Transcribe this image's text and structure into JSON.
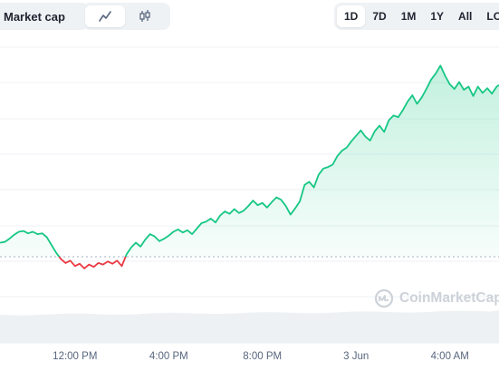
{
  "toolbar": {
    "metric_label": "Market cap",
    "chart_types": [
      "line-chart-icon",
      "candlestick-icon"
    ],
    "ranges": [
      "1D",
      "7D",
      "1M",
      "1Y",
      "All",
      "LOG"
    ],
    "active_range": "1D"
  },
  "watermark": "CoinMarketCap",
  "colors": {
    "up": "#16c784",
    "down": "#ea3943",
    "grid": "#eff2f5",
    "ref": "#a6b0c3"
  },
  "chart_data": {
    "type": "area",
    "title": "",
    "x_tick_labels": [
      "12:00 PM",
      "4:00 PM",
      "8:00 PM",
      "3 Jun",
      "4:00 AM"
    ],
    "x_tick_hours": [
      12,
      16,
      20,
      24,
      28
    ],
    "x_range_hours": [
      8.8,
      30.1
    ],
    "baseline": 0,
    "series": [
      {
        "x": [
          8.8,
          9.0,
          9.2,
          9.4,
          9.6,
          9.8,
          10.0,
          10.2,
          10.4,
          10.6,
          10.8,
          11.0,
          11.2,
          11.4,
          11.6,
          11.8,
          12.0,
          12.2,
          12.4,
          12.6,
          12.8,
          13.0,
          13.2,
          13.4,
          13.6,
          13.8,
          14.0,
          14.2,
          14.4,
          14.6,
          14.8,
          15.0,
          15.2,
          15.4,
          15.6,
          15.8,
          16.0,
          16.2,
          16.4,
          16.6,
          16.8,
          17.0,
          17.2,
          17.4,
          17.6,
          17.8,
          18.0,
          18.2,
          18.4,
          18.6,
          18.8,
          19.0,
          19.2,
          19.4,
          19.6,
          19.8,
          20.0,
          20.2,
          20.4,
          20.6,
          20.8,
          21.0,
          21.2,
          21.4,
          21.6,
          21.8,
          22.0,
          22.2,
          22.4,
          22.6,
          22.8,
          23.0,
          23.2,
          23.4,
          23.6,
          23.8,
          24.0,
          24.2,
          24.4,
          24.6,
          24.8,
          25.0,
          25.2,
          25.4,
          25.6,
          25.8,
          26.0,
          26.2,
          26.4,
          26.6,
          26.8,
          27.0,
          27.2,
          27.4,
          27.6,
          27.8,
          28.0,
          28.2,
          28.4,
          28.6,
          28.8,
          29.0,
          29.2,
          29.4,
          29.6,
          29.8,
          30.0,
          30.1
        ],
        "values": [
          1.8,
          1.9,
          2.3,
          2.8,
          3.2,
          3.3,
          3.0,
          3.2,
          2.9,
          3.0,
          2.5,
          1.5,
          0.5,
          -0.3,
          -0.8,
          -0.5,
          -1.2,
          -0.9,
          -1.5,
          -1.0,
          -1.3,
          -0.8,
          -1.0,
          -0.6,
          -0.9,
          -0.5,
          -1.2,
          0.3,
          1.2,
          1.8,
          1.3,
          2.2,
          2.9,
          2.6,
          2.0,
          2.3,
          2.7,
          3.2,
          3.5,
          3.1,
          3.4,
          2.9,
          3.6,
          4.3,
          4.5,
          4.9,
          4.4,
          5.3,
          5.8,
          5.5,
          6.1,
          5.6,
          5.9,
          6.5,
          7.2,
          6.6,
          6.9,
          6.3,
          7.0,
          7.6,
          7.3,
          6.5,
          5.4,
          6.2,
          7.1,
          9.2,
          9.6,
          8.9,
          10.5,
          11.3,
          11.5,
          11.8,
          12.9,
          13.6,
          14.0,
          14.8,
          15.5,
          16.2,
          15.4,
          14.9,
          16.1,
          16.8,
          16.0,
          17.5,
          18.1,
          17.9,
          18.8,
          19.9,
          20.7,
          19.6,
          20.4,
          21.5,
          22.7,
          23.5,
          24.5,
          23.2,
          22.1,
          21.5,
          22.4,
          21.4,
          21.8,
          20.6,
          21.8,
          21.0,
          21.6,
          20.9,
          21.8,
          22.0
        ]
      }
    ]
  }
}
